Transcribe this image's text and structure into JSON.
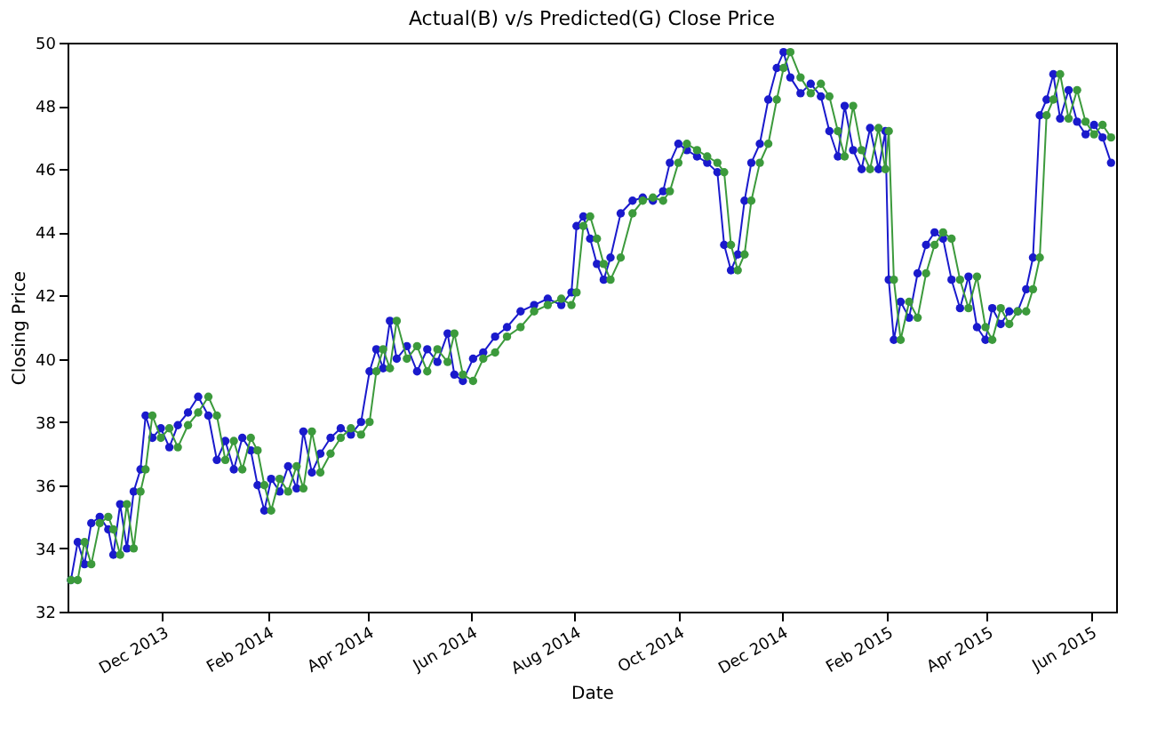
{
  "chart_data": {
    "type": "line",
    "title": "Actual(B) v/s Predicted(G) Close Price",
    "xlabel": "Date",
    "ylabel": "Closing Price",
    "x": [
      "2013-10-08",
      "2013-10-12",
      "2013-10-16",
      "2013-10-20",
      "2013-10-25",
      "2013-10-30",
      "2013-11-02",
      "2013-11-06",
      "2013-11-10",
      "2013-11-14",
      "2013-11-18",
      "2013-11-21",
      "2013-11-25",
      "2013-11-30",
      "2013-12-05",
      "2013-12-10",
      "2013-12-16",
      "2013-12-22",
      "2013-12-28",
      "2014-01-02",
      "2014-01-07",
      "2014-01-12",
      "2014-01-17",
      "2014-01-22",
      "2014-01-26",
      "2014-01-30",
      "2014-02-03",
      "2014-02-08",
      "2014-02-13",
      "2014-02-18",
      "2014-02-22",
      "2014-02-27",
      "2014-03-04",
      "2014-03-10",
      "2014-03-16",
      "2014-03-22",
      "2014-03-28",
      "2014-04-02",
      "2014-04-06",
      "2014-04-10",
      "2014-04-14",
      "2014-04-18",
      "2014-04-24",
      "2014-04-30",
      "2014-05-06",
      "2014-05-12",
      "2014-05-18",
      "2014-05-22",
      "2014-05-27",
      "2014-06-02",
      "2014-06-08",
      "2014-06-15",
      "2014-06-22",
      "2014-06-30",
      "2014-07-08",
      "2014-07-16",
      "2014-07-24",
      "2014-07-30",
      "2014-08-02",
      "2014-08-06",
      "2014-08-10",
      "2014-08-14",
      "2014-08-18",
      "2014-08-22",
      "2014-08-28",
      "2014-09-04",
      "2014-09-10",
      "2014-09-16",
      "2014-09-22",
      "2014-09-26",
      "2014-10-01",
      "2014-10-06",
      "2014-10-12",
      "2014-10-18",
      "2014-10-24",
      "2014-10-28",
      "2014-11-01",
      "2014-11-05",
      "2014-11-09",
      "2014-11-13",
      "2014-11-18",
      "2014-11-23",
      "2014-11-28",
      "2014-12-02",
      "2014-12-06",
      "2014-12-12",
      "2014-12-18",
      "2014-12-24",
      "2014-12-29",
      "2015-01-03",
      "2015-01-07",
      "2015-01-12",
      "2015-01-17",
      "2015-01-22",
      "2015-01-27",
      "2015-01-31",
      "2015-02-02",
      "2015-02-05",
      "2015-02-09",
      "2015-02-14",
      "2015-02-19",
      "2015-02-24",
      "2015-03-01",
      "2015-03-06",
      "2015-03-11",
      "2015-03-16",
      "2015-03-21",
      "2015-03-26",
      "2015-03-31",
      "2015-04-04",
      "2015-04-09",
      "2015-04-14",
      "2015-04-19",
      "2015-04-24",
      "2015-04-28",
      "2015-05-02",
      "2015-05-06",
      "2015-05-10",
      "2015-05-14",
      "2015-05-19",
      "2015-05-24",
      "2015-05-29",
      "2015-06-03",
      "2015-06-08",
      "2015-06-13"
    ],
    "series": [
      {
        "color": "#1a1acc",
        "values": [
          33.0,
          34.2,
          33.5,
          34.8,
          35.0,
          34.6,
          33.8,
          35.4,
          34.0,
          35.8,
          36.5,
          38.2,
          37.5,
          37.8,
          37.2,
          37.9,
          38.3,
          38.8,
          38.2,
          36.8,
          37.4,
          36.5,
          37.5,
          37.1,
          36.0,
          35.2,
          36.2,
          35.8,
          36.6,
          35.9,
          37.7,
          36.4,
          37.0,
          37.5,
          37.8,
          37.6,
          38.0,
          39.6,
          40.3,
          39.7,
          41.2,
          40.0,
          40.4,
          39.6,
          40.3,
          39.9,
          40.8,
          39.5,
          39.3,
          40.0,
          40.2,
          40.7,
          41.0,
          41.5,
          41.7,
          41.9,
          41.7,
          42.1,
          44.2,
          44.5,
          43.8,
          43.0,
          42.5,
          43.2,
          44.6,
          45.0,
          45.1,
          45.0,
          45.3,
          46.2,
          46.8,
          46.6,
          46.4,
          46.2,
          45.9,
          43.6,
          42.8,
          43.3,
          45.0,
          46.2,
          46.8,
          48.2,
          49.2,
          49.7,
          48.9,
          48.4,
          48.7,
          48.3,
          47.2,
          46.4,
          48.0,
          46.6,
          46.0,
          47.3,
          46.0,
          47.2,
          42.5,
          40.6,
          41.8,
          41.3,
          42.7,
          43.6,
          44.0,
          43.8,
          42.5,
          41.6,
          42.6,
          41.0,
          40.6,
          41.6,
          41.1,
          41.5,
          41.5,
          42.2,
          43.2,
          47.7,
          48.2,
          49.0,
          47.6,
          48.5,
          47.5,
          47.1,
          47.4,
          47.0,
          46.2
        ]
      },
      {
        "color": "#3c9a3c",
        "values": [
          33.0,
          33.0,
          34.2,
          33.5,
          34.8,
          35.0,
          34.6,
          33.8,
          35.4,
          34.0,
          35.8,
          36.5,
          38.2,
          37.5,
          37.8,
          37.2,
          37.9,
          38.3,
          38.8,
          38.2,
          36.8,
          37.4,
          36.5,
          37.5,
          37.1,
          36.0,
          35.2,
          36.2,
          35.8,
          36.6,
          35.9,
          37.7,
          36.4,
          37.0,
          37.5,
          37.8,
          37.6,
          38.0,
          39.6,
          40.3,
          39.7,
          41.2,
          40.0,
          40.4,
          39.6,
          40.3,
          39.9,
          40.8,
          39.5,
          39.3,
          40.0,
          40.2,
          40.7,
          41.0,
          41.5,
          41.7,
          41.9,
          41.7,
          42.1,
          44.2,
          44.5,
          43.8,
          43.0,
          42.5,
          43.2,
          44.6,
          45.0,
          45.1,
          45.0,
          45.3,
          46.2,
          46.8,
          46.6,
          46.4,
          46.2,
          45.9,
          43.6,
          42.8,
          43.3,
          45.0,
          46.2,
          46.8,
          48.2,
          49.2,
          49.7,
          48.9,
          48.4,
          48.7,
          48.3,
          47.2,
          46.4,
          48.0,
          46.6,
          46.0,
          47.3,
          46.0,
          47.2,
          42.5,
          40.6,
          41.8,
          41.3,
          42.7,
          43.6,
          44.0,
          43.8,
          42.5,
          41.6,
          42.6,
          41.0,
          40.6,
          41.6,
          41.1,
          41.5,
          41.5,
          42.2,
          43.2,
          47.7,
          48.2,
          49.0,
          47.6,
          48.5,
          47.5,
          47.1,
          47.4,
          47.0
        ]
      }
    ],
    "xlim": [
      "2013-10-06",
      "2015-06-16"
    ],
    "xticks": [
      {
        "value": "2013-12-01",
        "label": "Dec 2013"
      },
      {
        "value": "2014-02-01",
        "label": "Feb 2014"
      },
      {
        "value": "2014-04-01",
        "label": "Apr 2014"
      },
      {
        "value": "2014-06-01",
        "label": "Jun 2014"
      },
      {
        "value": "2014-08-01",
        "label": "Aug 2014"
      },
      {
        "value": "2014-10-01",
        "label": "Oct 2014"
      },
      {
        "value": "2014-12-01",
        "label": "Dec 2014"
      },
      {
        "value": "2015-02-01",
        "label": "Feb 2015"
      },
      {
        "value": "2015-04-01",
        "label": "Apr 2015"
      },
      {
        "value": "2015-06-01",
        "label": "Jun 2015"
      }
    ],
    "ylim": [
      32,
      50
    ],
    "yticks": [
      32,
      34,
      36,
      38,
      40,
      42,
      44,
      46,
      48,
      50
    ],
    "grid": false,
    "marker": "circle",
    "line_style": "solid"
  }
}
